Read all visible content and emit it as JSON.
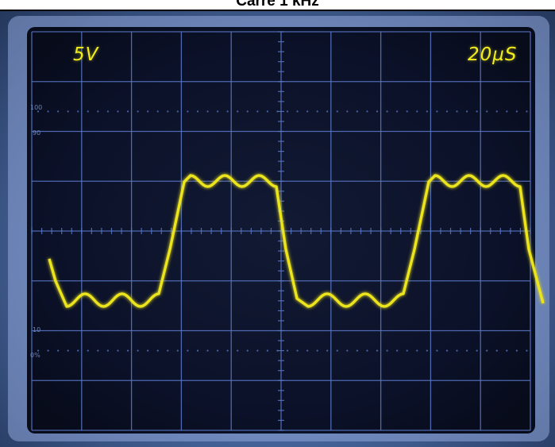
{
  "title": "Carré 1 kHz",
  "scope": {
    "volts_per_div": "5V",
    "time_per_div": "20µS",
    "scale_marks": [
      "100",
      "90",
      "10",
      "0%"
    ],
    "trace_color": "#ece41e",
    "graticule_color": "#5a78c8"
  }
}
